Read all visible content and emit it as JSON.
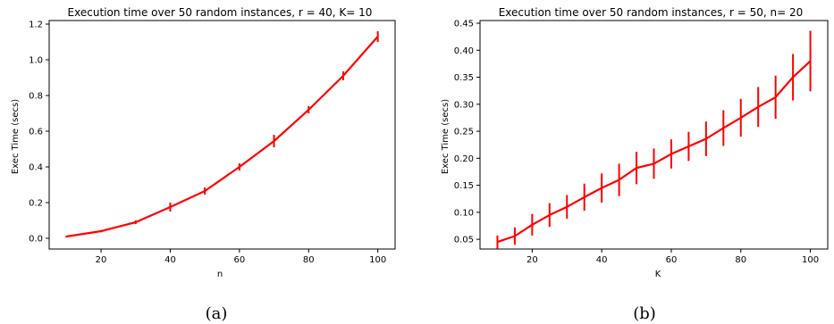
{
  "chart_data": [
    {
      "type": "line",
      "title": "Execution time over 50 random instances, r = 40, K= 10",
      "xlabel": "n",
      "ylabel": "Exec Time (secs)",
      "caption": "(a)",
      "xlim": [
        5,
        105
      ],
      "ylim": [
        -0.06,
        1.22
      ],
      "xticks": [
        20,
        40,
        60,
        80,
        100
      ],
      "yticks": [
        0.0,
        0.2,
        0.4,
        0.6,
        0.8,
        1.0,
        1.2
      ],
      "ytick_labels": [
        "0.0",
        "0.2",
        "0.4",
        "0.6",
        "0.8",
        "1.0",
        "1.2"
      ],
      "grid": false,
      "color": "#ff0000",
      "series": [
        {
          "x": [
            10,
            20,
            30,
            40,
            50,
            60,
            70,
            80,
            90,
            100
          ],
          "values": [
            0.01,
            0.04,
            0.09,
            0.175,
            0.265,
            0.4,
            0.545,
            0.72,
            0.91,
            1.13
          ],
          "error": [
            0.005,
            0.006,
            0.01,
            0.025,
            0.02,
            0.02,
            0.035,
            0.02,
            0.025,
            0.03
          ]
        }
      ]
    },
    {
      "type": "line",
      "title": "Execution time over 50 random instances, r = 50, n= 20",
      "xlabel": "K",
      "ylabel": "Exec Time (secs)",
      "caption": "(b)",
      "xlim": [
        5,
        105
      ],
      "ylim": [
        0.032,
        0.455
      ],
      "xticks": [
        20,
        40,
        60,
        80,
        100
      ],
      "yticks": [
        0.05,
        0.1,
        0.15,
        0.2,
        0.25,
        0.3,
        0.35,
        0.4,
        0.45
      ],
      "ytick_labels": [
        "0.05",
        "0.10",
        "0.15",
        "0.20",
        "0.25",
        "0.30",
        "0.35",
        "0.40",
        "0.45"
      ],
      "grid": false,
      "color": "#ff0000",
      "series": [
        {
          "x": [
            10,
            15,
            20,
            25,
            30,
            35,
            40,
            45,
            50,
            55,
            60,
            65,
            70,
            75,
            80,
            85,
            90,
            95,
            100
          ],
          "values": [
            0.045,
            0.056,
            0.077,
            0.095,
            0.11,
            0.128,
            0.145,
            0.16,
            0.182,
            0.19,
            0.208,
            0.222,
            0.236,
            0.256,
            0.275,
            0.295,
            0.313,
            0.35,
            0.38
          ],
          "error": [
            0.012,
            0.016,
            0.02,
            0.022,
            0.022,
            0.025,
            0.027,
            0.03,
            0.03,
            0.028,
            0.027,
            0.027,
            0.032,
            0.033,
            0.035,
            0.037,
            0.04,
            0.043,
            0.056
          ]
        }
      ]
    }
  ]
}
